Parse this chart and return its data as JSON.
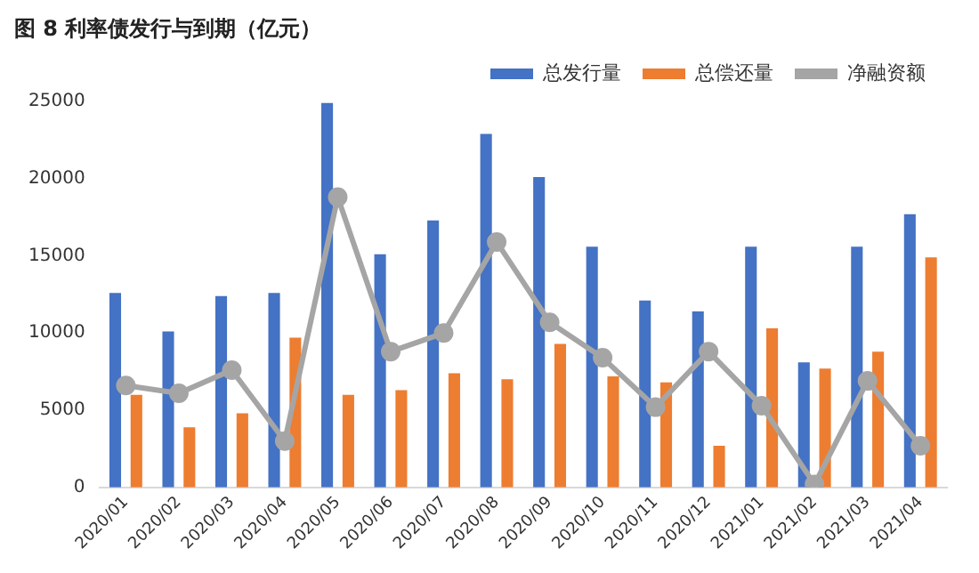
{
  "chart_data": {
    "type": "bar",
    "title": "图 8   利率债发行与到期（亿元）",
    "categories": [
      "2020/01",
      "2020/02",
      "2020/03",
      "2020/04",
      "2020/05",
      "2020/06",
      "2020/07",
      "2020/08",
      "2020/09",
      "2020/10",
      "2020/11",
      "2020/12",
      "2021/01",
      "2021/02",
      "2021/03",
      "2021/04"
    ],
    "series": [
      {
        "name": "总发行量",
        "color": "#4472c4",
        "values": [
          12600,
          10100,
          12400,
          12600,
          24900,
          15100,
          17300,
          22900,
          20100,
          15600,
          12100,
          11400,
          15600,
          8100,
          15600,
          17700
        ]
      },
      {
        "name": "总偿还量",
        "color": "#ed7d31",
        "values": [
          6000,
          3900,
          4800,
          9700,
          6000,
          6300,
          7400,
          7000,
          9300,
          7200,
          6800,
          2700,
          10300,
          7700,
          8800,
          14900
        ]
      },
      {
        "name": "净融资额",
        "type": "line",
        "color": "#a5a5a5",
        "values": [
          6600,
          6100,
          7600,
          3000,
          18800,
          8800,
          10000,
          15900,
          10700,
          8400,
          5200,
          8800,
          5300,
          200,
          6900,
          2700
        ]
      }
    ],
    "ylim": [
      0,
      25000
    ],
    "yticks": [
      0,
      5000,
      10000,
      15000,
      20000,
      25000
    ],
    "grid": false,
    "legend": "top right",
    "marker": "circle",
    "line_style": "solid"
  }
}
